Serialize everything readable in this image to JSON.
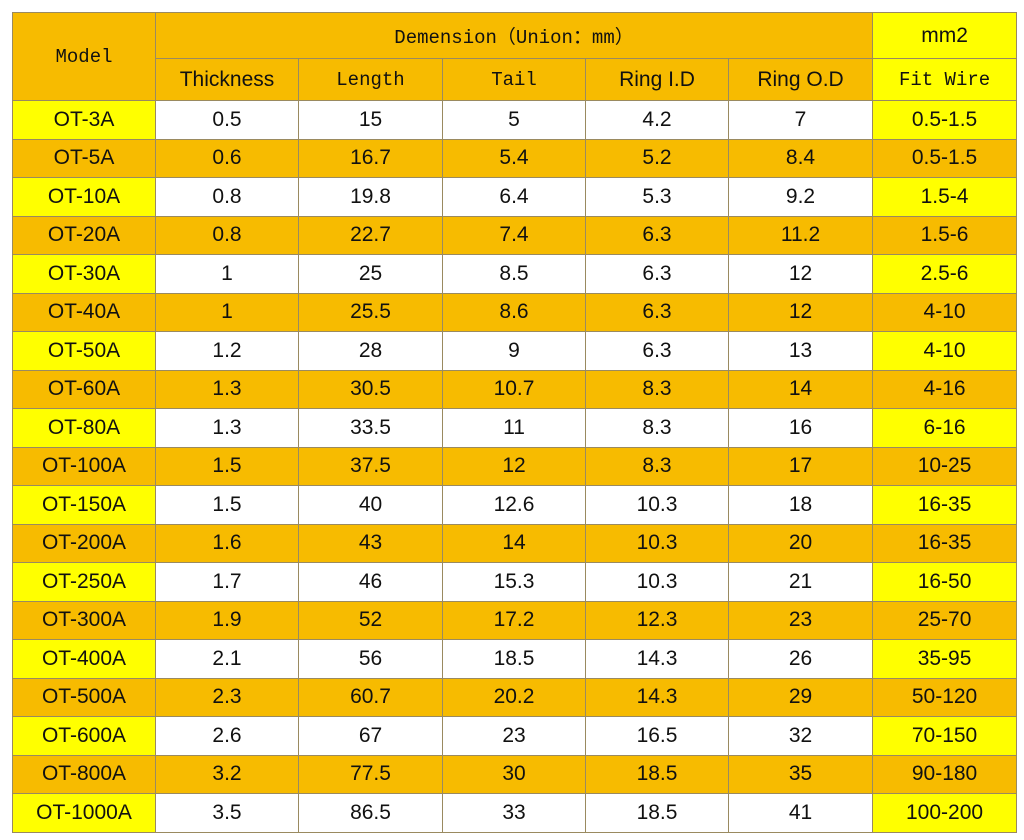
{
  "header": {
    "model": "Model",
    "dimension": "Demension（Union：mm）",
    "unit": "mm2",
    "columns": [
      "Thickness",
      "Length",
      "Tail",
      "Ring I.D",
      "Ring O.D"
    ],
    "fit_wire": "Fit Wire"
  },
  "table": {
    "rows": [
      [
        "OT-3A",
        "0.5",
        "15",
        "5",
        "4.2",
        "7",
        "0.5-1.5"
      ],
      [
        "OT-5A",
        "0.6",
        "16.7",
        "5.4",
        "5.2",
        "8.4",
        "0.5-1.5"
      ],
      [
        "OT-10A",
        "0.8",
        "19.8",
        "6.4",
        "5.3",
        "9.2",
        "1.5-4"
      ],
      [
        "OT-20A",
        "0.8",
        "22.7",
        "7.4",
        "6.3",
        "11.2",
        "1.5-6"
      ],
      [
        "OT-30A",
        "1",
        "25",
        "8.5",
        "6.3",
        "12",
        "2.5-6"
      ],
      [
        "OT-40A",
        "1",
        "25.5",
        "8.6",
        "6.3",
        "12",
        "4-10"
      ],
      [
        "OT-50A",
        "1.2",
        "28",
        "9",
        "6.3",
        "13",
        "4-10"
      ],
      [
        "OT-60A",
        "1.3",
        "30.5",
        "10.7",
        "8.3",
        "14",
        "4-16"
      ],
      [
        "OT-80A",
        "1.3",
        "33.5",
        "11",
        "8.3",
        "16",
        "6-16"
      ],
      [
        "OT-100A",
        "1.5",
        "37.5",
        "12",
        "8.3",
        "17",
        "10-25"
      ],
      [
        "OT-150A",
        "1.5",
        "40",
        "12.6",
        "10.3",
        "18",
        "16-35"
      ],
      [
        "OT-200A",
        "1.6",
        "43",
        "14",
        "10.3",
        "20",
        "16-35"
      ],
      [
        "OT-250A",
        "1.7",
        "46",
        "15.3",
        "10.3",
        "21",
        "16-50"
      ],
      [
        "OT-300A",
        "1.9",
        "52",
        "17.2",
        "12.3",
        "23",
        "25-70"
      ],
      [
        "OT-400A",
        "2.1",
        "56",
        "18.5",
        "14.3",
        "26",
        "35-95"
      ],
      [
        "OT-500A",
        "2.3",
        "60.7",
        "20.2",
        "14.3",
        "29",
        "50-120"
      ],
      [
        "OT-600A",
        "2.6",
        "67",
        "23",
        "16.5",
        "32",
        "70-150"
      ],
      [
        "OT-800A",
        "3.2",
        "77.5",
        "30",
        "18.5",
        "35",
        "90-180"
      ],
      [
        "OT-1000A",
        "3.5",
        "86.5",
        "33",
        "18.5",
        "41",
        "100-200"
      ]
    ]
  }
}
